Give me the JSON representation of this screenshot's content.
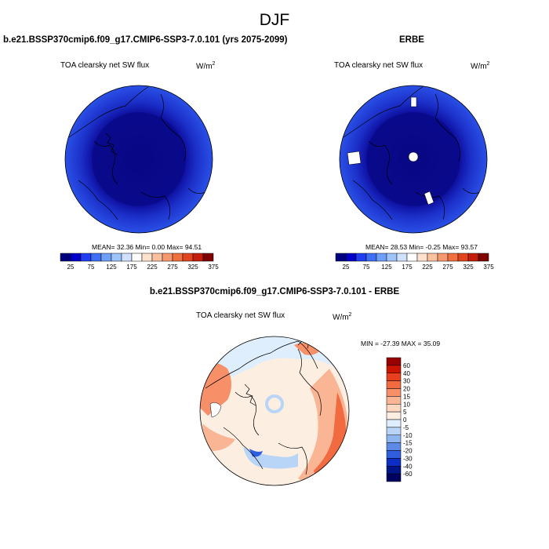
{
  "title": "DJF",
  "panels": [
    {
      "title": "b.e21.BSSP370cmip6.f09_g17.CMIP6-SSP3-7.0.101 (yrs 2075-2099)",
      "variable": "TOA clearsky net SW flux",
      "units_base": "W/m",
      "units_exp": "2",
      "stats": "MEAN=  32.36  Min=   0.00  Max=  94.51"
    },
    {
      "title": "ERBE",
      "variable": "TOA clearsky net SW flux",
      "units_base": "W/m",
      "units_exp": "2",
      "stats": "MEAN=  28.53  Min=  -0.25  Max=  93.57"
    },
    {
      "title": "b.e21.BSSP370cmip6.f09_g17.CMIP6-SSP3-7.0.101 - ERBE",
      "variable": "TOA clearsky net SW flux",
      "units_base": "W/m",
      "units_exp": "2",
      "stats": "MIN = -27.39 MAX =  35.09"
    }
  ],
  "colorbar_abs": {
    "labels": [
      "25",
      "75",
      "125",
      "175",
      "225",
      "275",
      "325",
      "375"
    ],
    "colors": [
      "#00007f",
      "#0000c8",
      "#1f3ff0",
      "#3f6ff4",
      "#6f9ff8",
      "#9fc3fb",
      "#cfe1fd",
      "#ffffff",
      "#fde1cf",
      "#fbc09f",
      "#f7996f",
      "#f0703f",
      "#e0451f",
      "#c41e0a",
      "#7f0000"
    ]
  },
  "colorbar_diff": {
    "labels": [
      "60",
      "40",
      "30",
      "20",
      "15",
      "10",
      "5",
      "0",
      "-5",
      "-10",
      "-15",
      "-20",
      "-30",
      "-40",
      "-60"
    ],
    "colors": [
      "#990000",
      "#cc1400",
      "#e8401f",
      "#f26a3f",
      "#f79068",
      "#fab594",
      "#fdd7bf",
      "#fdeee2",
      "#dfeefc",
      "#b8d4f7",
      "#8eb5f0",
      "#5d8ae6",
      "#2f5ede",
      "#0c2ec4",
      "#00158a",
      "#000060"
    ]
  }
}
